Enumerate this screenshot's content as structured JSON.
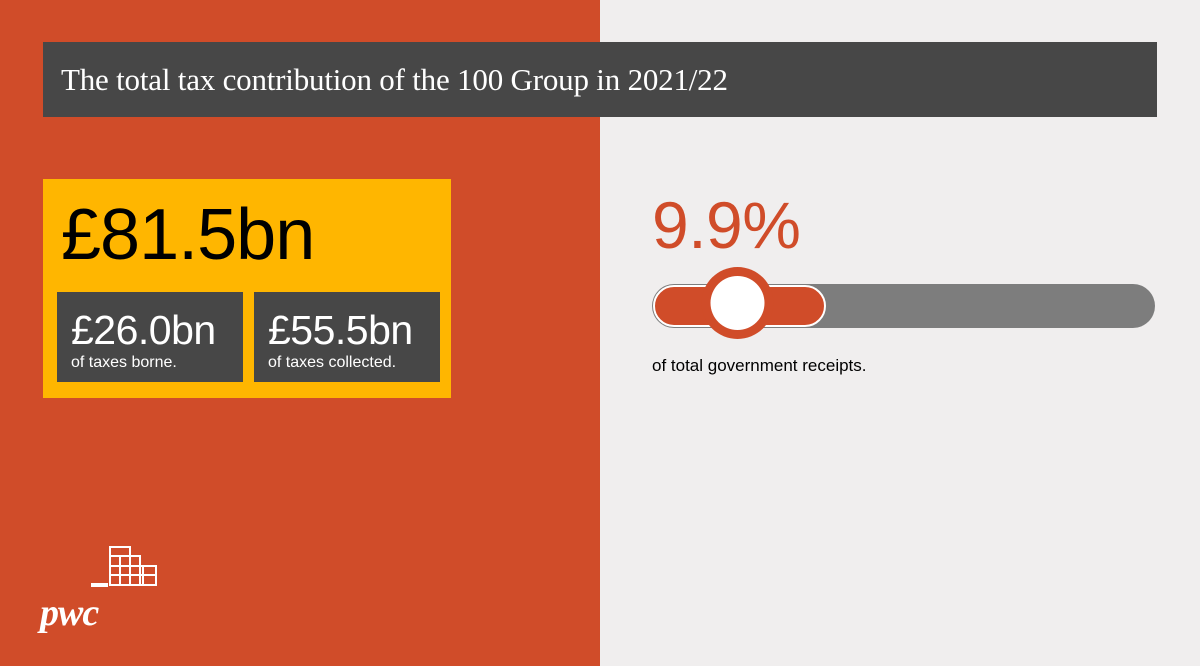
{
  "header": {
    "title": "The total tax contribution of the 100 Group in 2021/22"
  },
  "total": {
    "value": "£81.5bn",
    "borne": {
      "value": "£26.0bn",
      "label": "of taxes borne."
    },
    "collected": {
      "value": "£55.5bn",
      "label": "of taxes collected."
    }
  },
  "share": {
    "value": "9.9%",
    "caption": "of total government receipts.",
    "slider_level_fraction": 0.34
  },
  "brand": {
    "name": "pwc",
    "primary": "#d04c29",
    "accent": "#ffb600",
    "dark": "#474747"
  }
}
